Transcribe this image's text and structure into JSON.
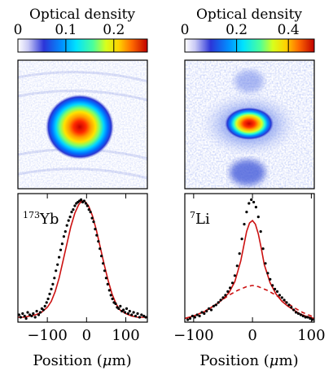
{
  "figure": {
    "left_panel": {
      "colorbar_title": "Optical density",
      "colorbar_ticks": [
        "0",
        "0.1",
        "0.2"
      ],
      "colorbar_tick_values": [
        0,
        0.1,
        0.2
      ],
      "colorbar_max": 0.27,
      "image_peak_od": 0.27,
      "image_description_color_center": "#cc1010",
      "species_mass": "173",
      "species_symbol": "Yb",
      "x_label_prefix": "Position (",
      "x_label_unit_symbol": "μ",
      "x_label_suffix": "m)"
    },
    "right_panel": {
      "colorbar_title": "Optical density",
      "colorbar_ticks": [
        "0",
        "0.2",
        "0.4"
      ],
      "colorbar_tick_values": [
        0,
        0.2,
        0.4
      ],
      "colorbar_max": 0.5,
      "image_peak_od": 0.5,
      "species_mass": "7",
      "species_symbol": "Li",
      "x_label_prefix": "Position (",
      "x_label_unit_symbol": "μ",
      "x_label_suffix": "m)"
    },
    "colors": {
      "fit_line": "#cc1111",
      "data_points": "#000000"
    }
  },
  "chart_data": [
    {
      "type": "scatter",
      "title": "",
      "annotation": "173Yb",
      "xlabel": "Position (μm)",
      "ylabel": "",
      "xlim": [
        -175,
        155
      ],
      "ylim": [
        0,
        1.05
      ],
      "xticks": [
        -100,
        0,
        100
      ],
      "xtick_labels": [
        "−100",
        "0",
        "100"
      ],
      "grid": false,
      "legend": "none",
      "series": [
        {
          "kind": "points",
          "x": [
            -172,
            -168,
            -163,
            -158,
            -154,
            -150,
            -145,
            -140,
            -136,
            -131,
            -127,
            -122,
            -118,
            -114,
            -110,
            -106,
            -102,
            -98,
            -94,
            -90,
            -86,
            -82,
            -78,
            -74,
            -70,
            -66,
            -62,
            -58,
            -54,
            -50,
            -46,
            -42,
            -38,
            -34,
            -30,
            -26,
            -22,
            -18,
            -14,
            -10,
            -6,
            -2,
            2,
            6,
            10,
            14,
            18,
            22,
            26,
            30,
            34,
            38,
            42,
            46,
            50,
            54,
            58,
            62,
            66,
            70,
            74,
            78,
            82,
            86,
            90,
            94,
            98,
            102,
            106,
            110,
            115,
            120,
            125,
            130,
            135,
            140,
            146,
            151
          ],
          "y": [
            0.06,
            0.04,
            0.07,
            0.05,
            0.03,
            0.08,
            0.06,
            0.05,
            0.07,
            0.04,
            0.09,
            0.06,
            0.08,
            0.11,
            0.1,
            0.13,
            0.16,
            0.19,
            0.23,
            0.27,
            0.31,
            0.36,
            0.42,
            0.47,
            0.53,
            0.59,
            0.64,
            0.7,
            0.74,
            0.79,
            0.83,
            0.86,
            0.9,
            0.92,
            0.95,
            0.97,
            0.98,
            0.99,
            1.0,
            0.98,
            0.99,
            0.97,
            0.95,
            0.92,
            0.9,
            0.85,
            0.82,
            0.76,
            0.71,
            0.66,
            0.6,
            0.54,
            0.48,
            0.42,
            0.36,
            0.31,
            0.26,
            0.22,
            0.19,
            0.16,
            0.15,
            0.12,
            0.11,
            0.13,
            0.09,
            0.1,
            0.08,
            0.11,
            0.07,
            0.09,
            0.06,
            0.08,
            0.05,
            0.07,
            0.04,
            0.06,
            0.05,
            0.04
          ]
        },
        {
          "kind": "line",
          "style": "solid",
          "x": [
            -175,
            -160,
            -145,
            -130,
            -115,
            -100,
            -90,
            -80,
            -70,
            -60,
            -50,
            -40,
            -30,
            -20,
            -12,
            -5,
            5,
            15,
            25,
            35,
            45,
            55,
            65,
            75,
            85,
            100,
            115,
            130,
            145,
            155
          ],
          "y": [
            0.04,
            0.04,
            0.05,
            0.06,
            0.08,
            0.12,
            0.17,
            0.25,
            0.36,
            0.5,
            0.64,
            0.78,
            0.89,
            0.96,
            0.99,
            0.99,
            0.95,
            0.87,
            0.75,
            0.61,
            0.47,
            0.34,
            0.23,
            0.15,
            0.1,
            0.07,
            0.05,
            0.04,
            0.04,
            0.04
          ]
        }
      ]
    },
    {
      "type": "scatter",
      "title": "",
      "annotation": "7Li",
      "xlabel": "Position (μm)",
      "ylabel": "",
      "xlim": [
        -115,
        105
      ],
      "ylim": [
        0,
        1.05
      ],
      "xticks": [
        -100,
        0,
        100
      ],
      "xtick_labels": [
        "−100",
        "0",
        "100"
      ],
      "grid": false,
      "legend": "none",
      "series": [
        {
          "kind": "points",
          "x": [
            -110,
            -106,
            -102,
            -98,
            -94,
            -90,
            -86,
            -82,
            -78,
            -74,
            -70,
            -66,
            -62,
            -58,
            -54,
            -50,
            -46,
            -42,
            -38,
            -34,
            -30,
            -26,
            -22,
            -18,
            -14,
            -10,
            -6,
            -2,
            2,
            6,
            10,
            14,
            18,
            22,
            26,
            30,
            34,
            38,
            42,
            46,
            50,
            54,
            58,
            62,
            66,
            70,
            74,
            78,
            82,
            86,
            90,
            94,
            98,
            102
          ],
          "y": [
            0.02,
            0.03,
            0.05,
            0.04,
            0.06,
            0.05,
            0.08,
            0.07,
            0.09,
            0.11,
            0.1,
            0.13,
            0.14,
            0.16,
            0.18,
            0.2,
            0.22,
            0.25,
            0.28,
            0.32,
            0.38,
            0.46,
            0.56,
            0.68,
            0.8,
            0.9,
            0.97,
            1.0,
            0.98,
            0.94,
            0.86,
            0.74,
            0.6,
            0.48,
            0.4,
            0.35,
            0.3,
            0.27,
            0.25,
            0.22,
            0.2,
            0.18,
            0.16,
            0.14,
            0.12,
            0.1,
            0.08,
            0.07,
            0.06,
            0.05,
            0.04,
            0.04,
            0.03,
            0.02
          ]
        },
        {
          "kind": "line",
          "style": "solid",
          "x": [
            -115,
            -100,
            -90,
            -80,
            -70,
            -60,
            -50,
            -40,
            -30,
            -20,
            -15,
            -10,
            -5,
            0,
            5,
            10,
            15,
            20,
            30,
            40,
            50,
            60,
            70,
            80,
            90,
            105
          ],
          "y": [
            0.03,
            0.05,
            0.07,
            0.09,
            0.12,
            0.15,
            0.19,
            0.24,
            0.33,
            0.5,
            0.62,
            0.74,
            0.81,
            0.83,
            0.8,
            0.72,
            0.6,
            0.47,
            0.32,
            0.23,
            0.17,
            0.13,
            0.1,
            0.07,
            0.05,
            0.03
          ]
        },
        {
          "kind": "line",
          "style": "dashed",
          "x": [
            -115,
            -100,
            -85,
            -70,
            -55,
            -40,
            -25,
            -10,
            0,
            10,
            25,
            40,
            55,
            70,
            85,
            105
          ],
          "y": [
            0.03,
            0.05,
            0.08,
            0.12,
            0.17,
            0.22,
            0.26,
            0.29,
            0.3,
            0.29,
            0.26,
            0.22,
            0.17,
            0.12,
            0.08,
            0.04
          ]
        }
      ]
    }
  ]
}
